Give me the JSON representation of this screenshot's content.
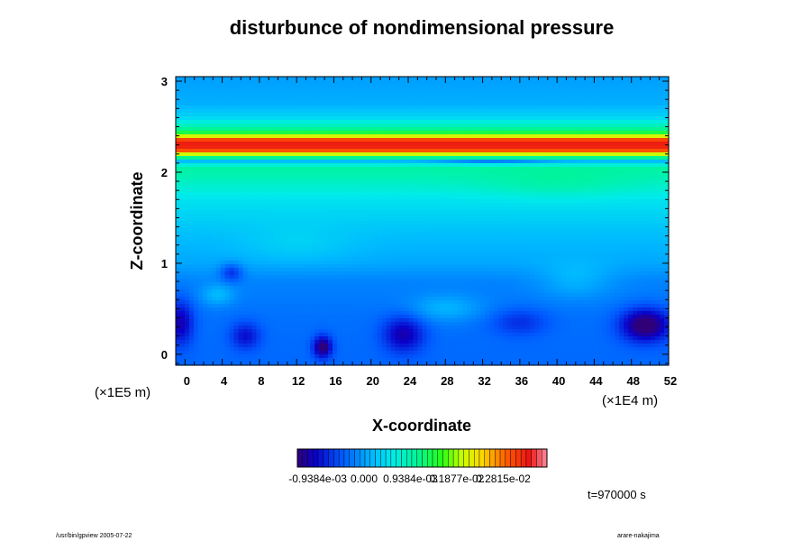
{
  "chart_data": {
    "type": "heatmap",
    "title": "disturbunce of nondimensional pressure",
    "xlabel": "X-coordinate",
    "ylabel": "Z-coordinate",
    "x_ticks": [
      "0",
      "4",
      "8",
      "12",
      "16",
      "20",
      "24",
      "28",
      "32",
      "36",
      "40",
      "44",
      "48",
      "52"
    ],
    "y_ticks": [
      "0",
      "1",
      "2",
      "3"
    ],
    "x_range": [
      -1,
      52
    ],
    "y_range": [
      -0.12,
      3.05
    ],
    "x_scale_label": "(×1E4 m)",
    "y_scale_label": "(×1E5 m)",
    "colorbar": {
      "tick_labels": [
        "-0.9384e-03",
        "0.000",
        "0.9384e-03",
        "0.1877e-02",
        "0.2815e-02"
      ],
      "min": -0.00135,
      "max": 0.0037
    },
    "profile": [
      {
        "z": -0.12,
        "v": -0.00035
      },
      {
        "z": 0.4,
        "v": -0.0003
      },
      {
        "z": 0.8,
        "v": -0.00018
      },
      {
        "z": 1.0,
        "v": 5e-05
      },
      {
        "z": 1.3,
        "v": 0.0002
      },
      {
        "z": 1.7,
        "v": 0.0005
      },
      {
        "z": 1.95,
        "v": 0.0009
      },
      {
        "z": 2.05,
        "v": 0.001
      },
      {
        "z": 2.12,
        "v": 0.0002
      },
      {
        "z": 2.18,
        "v": 0.0016
      },
      {
        "z": 2.24,
        "v": 0.003
      },
      {
        "z": 2.3,
        "v": 0.0034
      },
      {
        "z": 2.36,
        "v": 0.003
      },
      {
        "z": 2.42,
        "v": 0.0015
      },
      {
        "z": 2.5,
        "v": 0.0009
      },
      {
        "z": 2.6,
        "v": 0.0004
      },
      {
        "z": 2.75,
        "v": 0.0001
      },
      {
        "z": 3.05,
        "v": 0.0
      }
    ],
    "features": [
      {
        "x": 49.5,
        "z": 0.32,
        "v": -0.0012,
        "rx": 2.6,
        "rz": 0.18
      },
      {
        "x": 23.5,
        "z": 0.22,
        "v": -0.0008,
        "rx": 2.2,
        "rz": 0.2
      },
      {
        "x": 14.8,
        "z": 0.08,
        "v": -0.0011,
        "rx": 1.0,
        "rz": 0.12
      },
      {
        "x": -0.5,
        "z": 0.35,
        "v": -0.0008,
        "rx": 1.4,
        "rz": 0.25
      },
      {
        "x": 6.5,
        "z": 0.2,
        "v": -0.0006,
        "rx": 1.6,
        "rz": 0.15
      },
      {
        "x": 5.0,
        "z": 0.9,
        "v": -0.0006,
        "rx": 1.2,
        "rz": 0.1
      },
      {
        "x": 3.5,
        "z": 0.65,
        "v": 0.0004,
        "rx": 1.8,
        "rz": 0.12
      },
      {
        "x": 28.0,
        "z": 0.5,
        "v": 0.0004,
        "rx": 4.0,
        "rz": 0.15
      },
      {
        "x": 36.0,
        "z": 0.35,
        "v": -0.0004,
        "rx": 3.0,
        "rz": 0.15
      },
      {
        "x": 42.0,
        "z": 0.8,
        "v": 0.0003,
        "rx": 4.0,
        "rz": 0.2
      },
      {
        "x": 33.0,
        "z": 2.12,
        "v": -0.0004,
        "rx": 6.0,
        "rz": 0.03
      },
      {
        "x": 40.0,
        "z": 1.85,
        "v": 0.0002,
        "rx": 8.0,
        "rz": 0.15
      },
      {
        "x": 12.0,
        "z": 1.2,
        "v": 0.0002,
        "rx": 6.0,
        "rz": 0.2
      }
    ]
  },
  "annotations": {
    "time_label": "t=970000 s",
    "footer_left": "/usr/bin/gpview 2005-07-22",
    "footer_right": "arare-nakajima"
  }
}
